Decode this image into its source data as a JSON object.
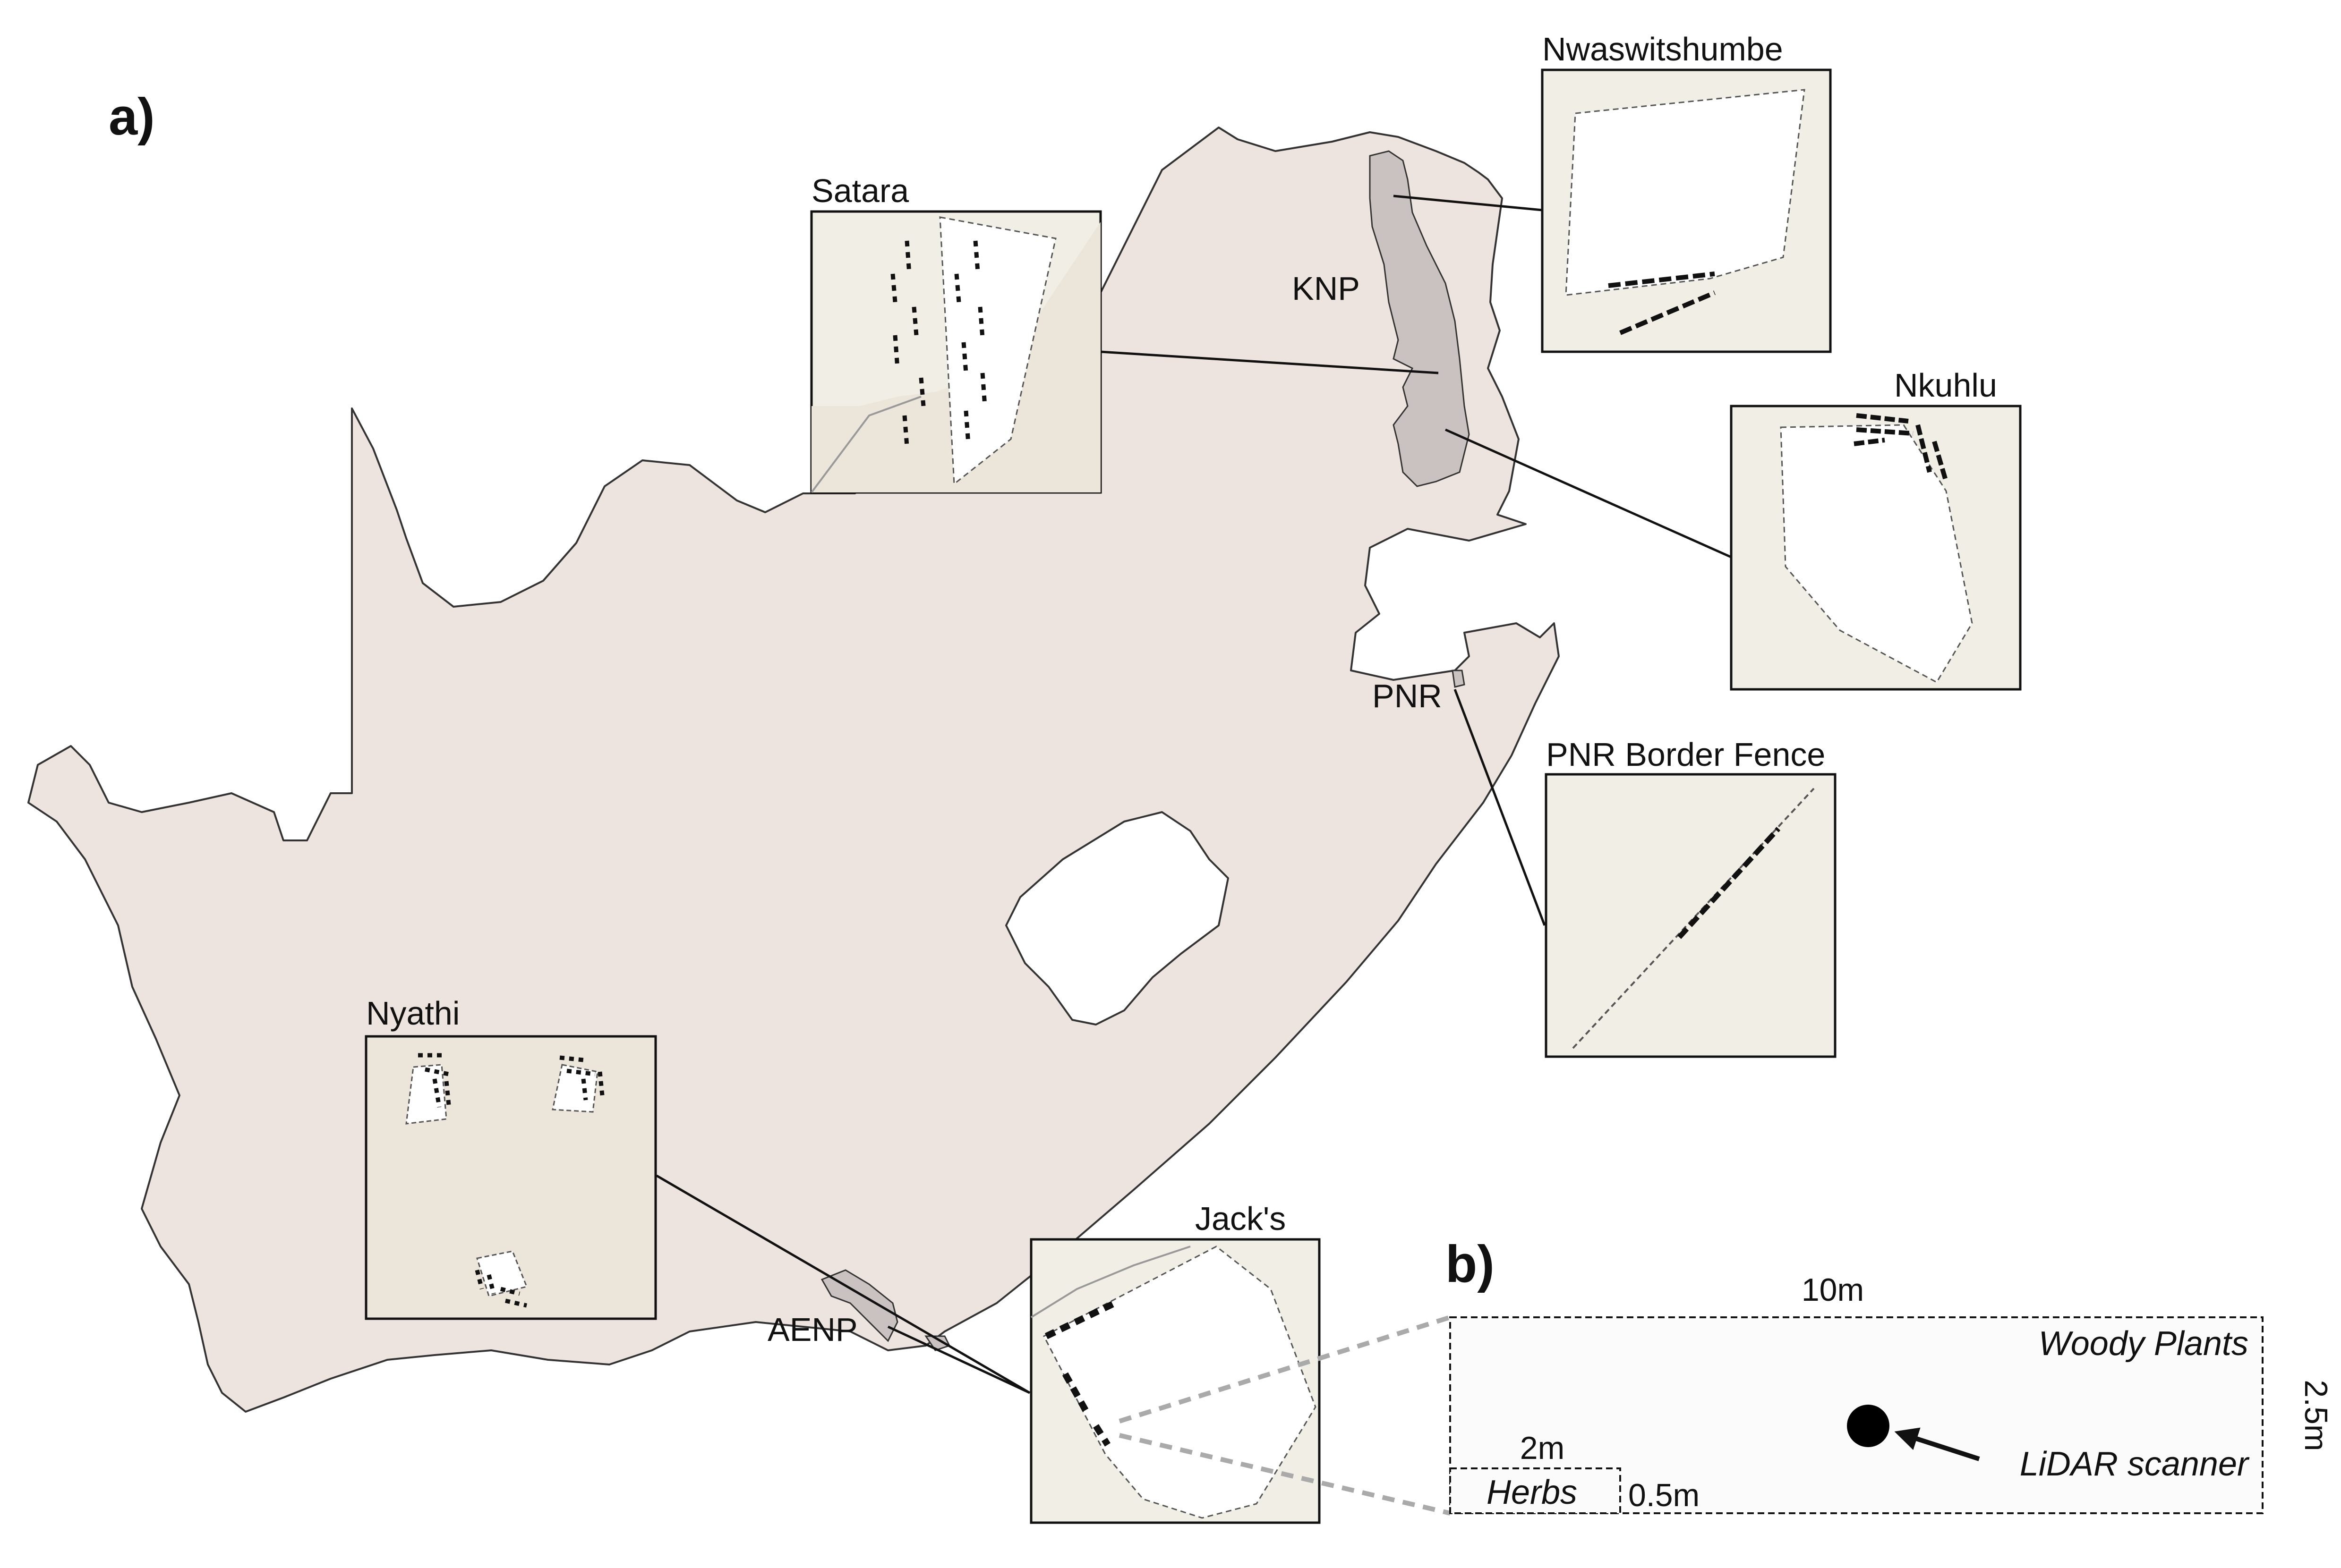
{
  "panel_a": {
    "label": "a)"
  },
  "panel_b": {
    "label": "b)"
  },
  "colors": {
    "land": "#ede4df",
    "park": "#c9c2c1",
    "inset_bg": "#f1efe5",
    "inset_bg_alt": "#ebe5da",
    "plot": "#ffffff",
    "stroke": "#111111"
  },
  "map_labels": {
    "knp": "KNP",
    "pnr": "PNR",
    "aenp": "AENP"
  },
  "insets": {
    "satara": "Satara",
    "nwaswitshumbe": "Nwaswitshumbe",
    "nkuhlu": "Nkuhlu",
    "pnr_fence": "PNR Border Fence",
    "nyathi": "Nyathi",
    "jacks": "Jack's"
  },
  "plot_diagram": {
    "woody_length": "10m",
    "woody_width": "2.5m",
    "woody_label": "Woody Plants",
    "herb_length": "2m",
    "herb_width": "0.5m",
    "herb_label": "Herbs",
    "scanner_label": "LiDAR scanner"
  }
}
